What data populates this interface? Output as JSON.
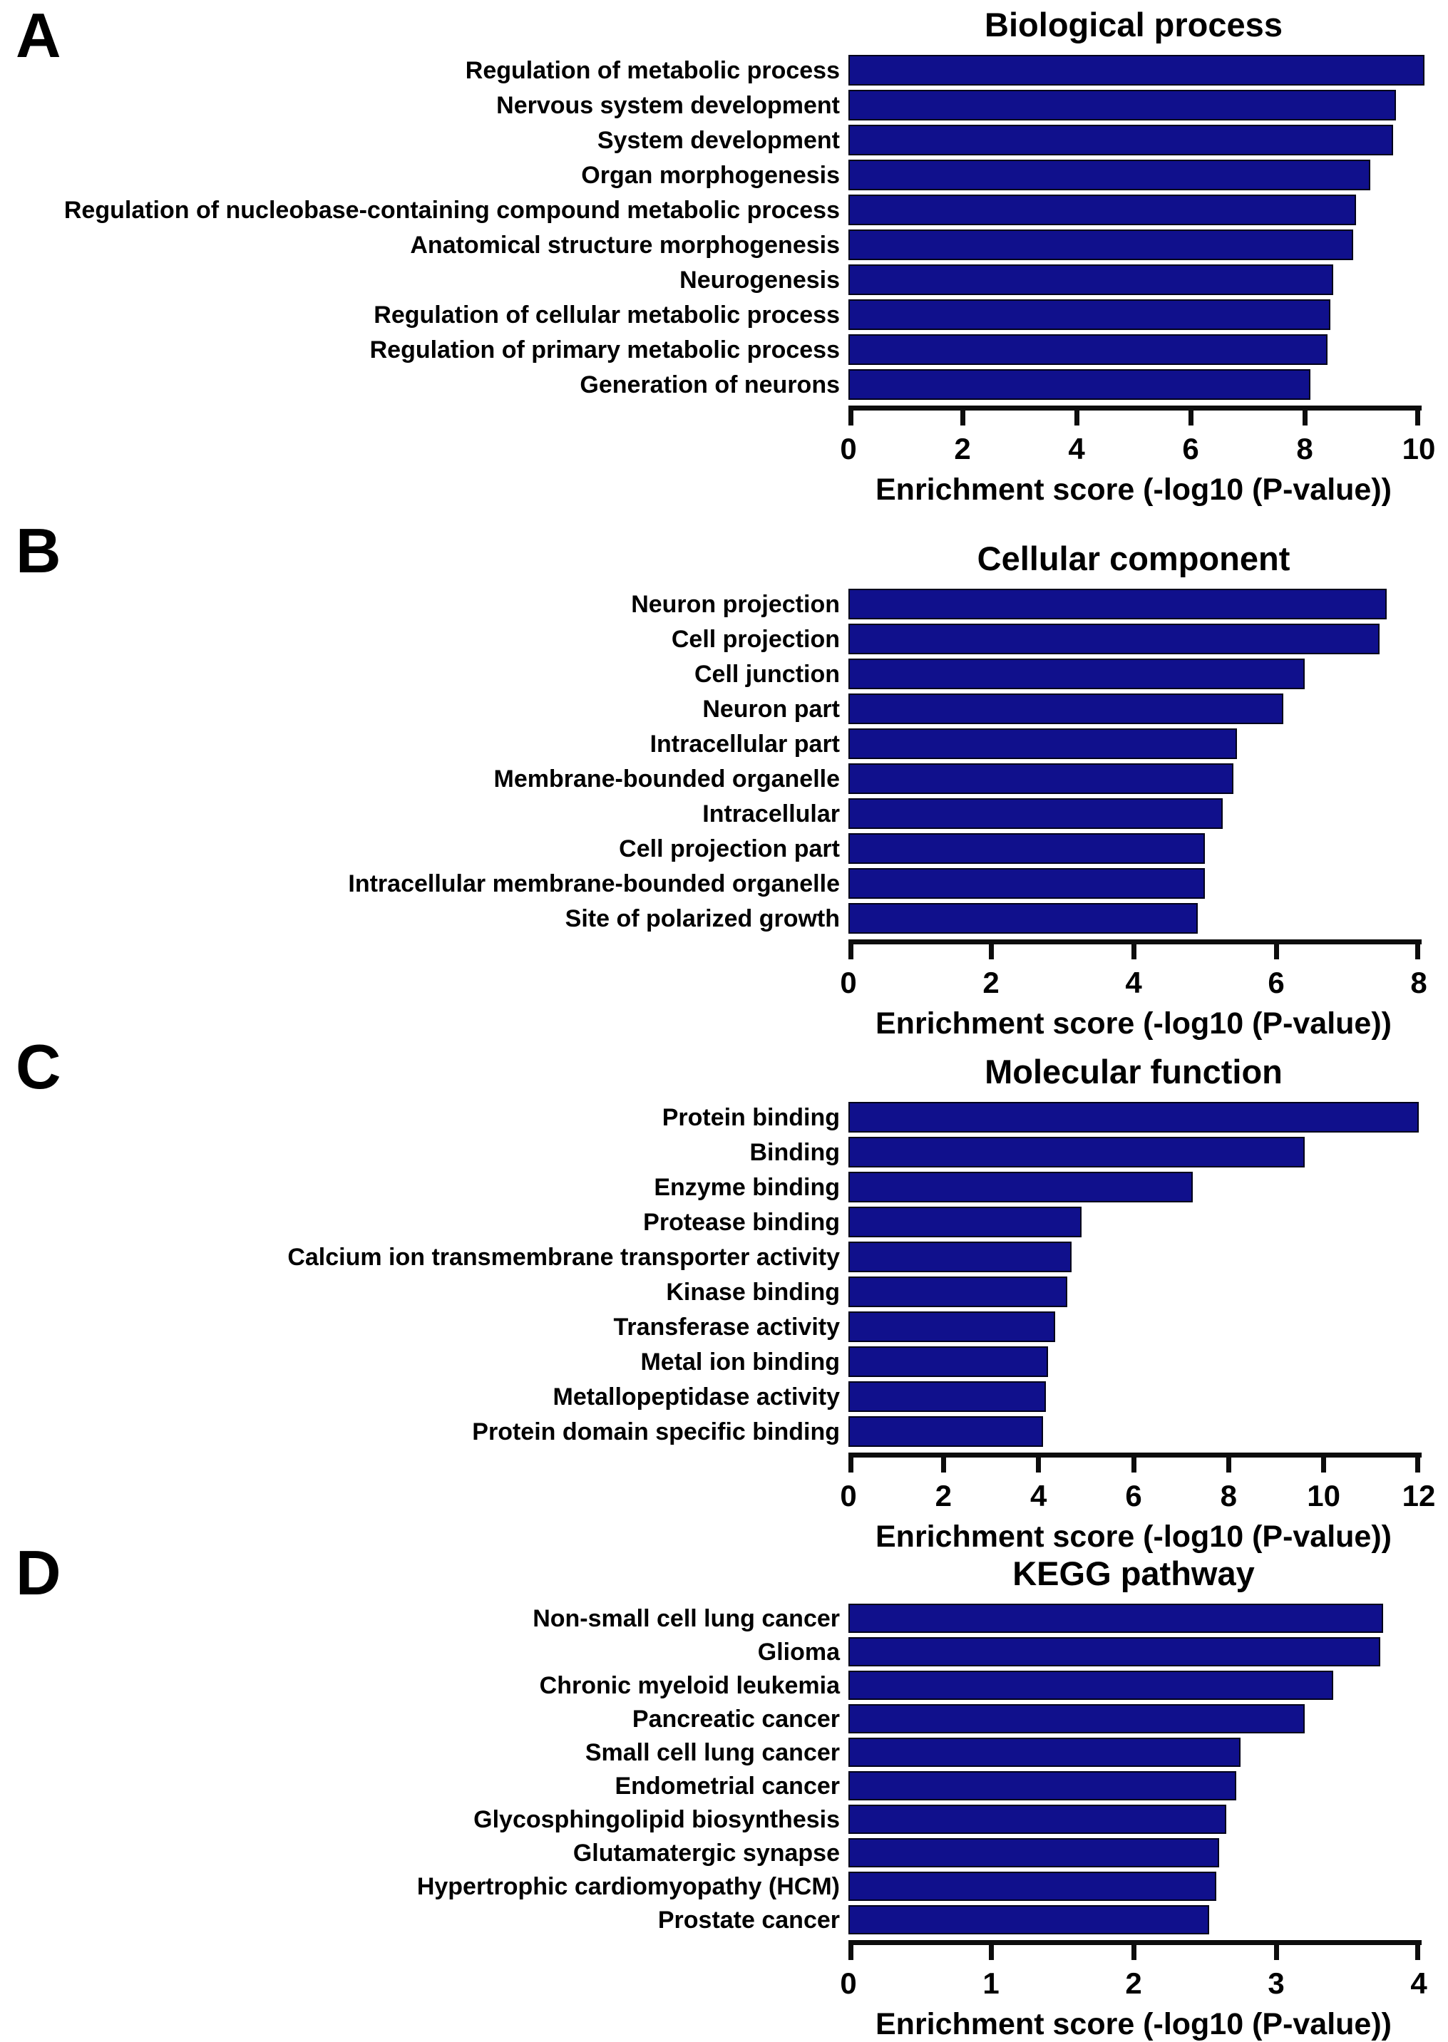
{
  "figure": {
    "bar_color": "#10108C",
    "axis_color": "#0d0d0d",
    "xlabel": "Enrichment score (-log10 (P-value))"
  },
  "chart_data": [
    {
      "type": "bar",
      "orientation": "horizontal",
      "panel": "A",
      "title": "Biological process",
      "xlabel": "Enrichment score (-log10 (P-value))",
      "xlim": [
        0,
        10
      ],
      "xticks": [
        0,
        2,
        4,
        6,
        8,
        10
      ],
      "grid": false,
      "legend": null,
      "categories": [
        "Regulation of metabolic process",
        "Nervous system development",
        "System development",
        "Organ morphogenesis",
        "Regulation of nucleobase-containing compound metabolic process",
        "Anatomical structure morphogenesis",
        "Neurogenesis",
        "Regulation of cellular metabolic process",
        "Regulation of primary metabolic process",
        "Generation of neurons"
      ],
      "values": [
        10.1,
        9.6,
        9.55,
        9.15,
        8.9,
        8.85,
        8.5,
        8.45,
        8.4,
        8.1
      ]
    },
    {
      "type": "bar",
      "orientation": "horizontal",
      "panel": "B",
      "title": "Cellular component",
      "xlabel": "Enrichment score (-log10 (P-value))",
      "xlim": [
        0,
        8
      ],
      "xticks": [
        0,
        2,
        4,
        6,
        8
      ],
      "grid": false,
      "legend": null,
      "categories": [
        "Neuron projection",
        "Cell projection",
        "Cell junction",
        "Neuron part",
        "Intracellular part",
        "Membrane-bounded organelle",
        "Intracellular",
        "Cell projection part",
        "Intracellular membrane-bounded organelle",
        "Site of polarized growth"
      ],
      "values": [
        7.55,
        7.45,
        6.4,
        6.1,
        5.45,
        5.4,
        5.25,
        5.0,
        5.0,
        4.9
      ]
    },
    {
      "type": "bar",
      "orientation": "horizontal",
      "panel": "C",
      "title": "Molecular function",
      "xlabel": "Enrichment score (-log10 (P-value))",
      "xlim": [
        0,
        12
      ],
      "xticks": [
        0,
        2,
        4,
        6,
        8,
        10,
        12
      ],
      "grid": false,
      "legend": null,
      "categories": [
        "Protein binding",
        "Binding",
        "Enzyme binding",
        "Protease binding",
        "Calcium ion transmembrane transporter activity",
        "Kinase binding",
        "Transferase activity",
        "Metal ion binding",
        "Metallopeptidase activity",
        "Protein domain specific binding"
      ],
      "values": [
        12.0,
        9.6,
        7.25,
        4.9,
        4.7,
        4.6,
        4.35,
        4.2,
        4.15,
        4.1
      ]
    },
    {
      "type": "bar",
      "orientation": "horizontal",
      "panel": "D",
      "title": "KEGG pathway",
      "xlabel": "Enrichment score (-log10 (P-value))",
      "xlim": [
        0,
        4
      ],
      "xticks": [
        0,
        1,
        2,
        3,
        4
      ],
      "grid": false,
      "legend": null,
      "categories": [
        "Non-small cell lung cancer",
        "Glioma",
        "Chronic myeloid leukemia",
        "Pancreatic cancer",
        "Small cell lung cancer",
        "Endometrial cancer",
        "Glycosphingolipid biosynthesis",
        "Glutamatergic synapse",
        "Hypertrophic cardiomyopathy (HCM)",
        "Prostate cancer"
      ],
      "values": [
        3.75,
        3.73,
        3.4,
        3.2,
        2.75,
        2.72,
        2.65,
        2.6,
        2.58,
        2.53
      ]
    }
  ]
}
